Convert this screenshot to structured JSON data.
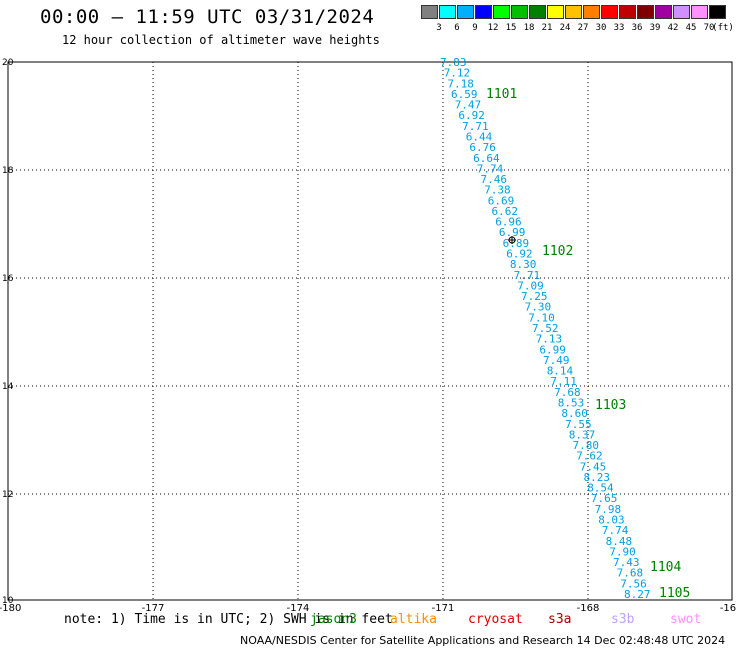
{
  "header": {
    "title": "00:00 – 11:59 UTC 03/31/2024",
    "subtitle": "12 hour collection of altimeter wave heights"
  },
  "color_scale": {
    "labels": [
      "3",
      "6",
      "9",
      "12",
      "15",
      "18",
      "21",
      "24",
      "27",
      "30",
      "33",
      "36",
      "39",
      "42",
      "45",
      "70"
    ],
    "unit": "(ft)",
    "colors": [
      "#808080",
      "#00ffff",
      "#00b0ff",
      "#0000ff",
      "#00ff00",
      "#00c000",
      "#008000",
      "#ffff00",
      "#ffc000",
      "#ff8000",
      "#ff0000",
      "#c00000",
      "#800000",
      "#a000a0",
      "#d090ff",
      "#ff90ff",
      "#000000"
    ]
  },
  "map": {
    "x_ticks": [
      "-180",
      "-177",
      "-174",
      "-171",
      "-168",
      "-16"
    ],
    "y_ticks": [
      "20",
      "18",
      "16",
      "14",
      "12",
      "10"
    ],
    "heights": [
      "7.83",
      "7.12",
      "7.18",
      "6.59",
      "7.47",
      "6.92",
      "7.71",
      "6.44",
      "6.76",
      "6.64",
      "7.74",
      "7.46",
      "7.38",
      "6.69",
      "6.62",
      "6.96",
      "6.99",
      "6.89",
      "6.92",
      "8.30",
      "7.71",
      "7.09",
      "7.25",
      "7.30",
      "7.10",
      "7.52",
      "7.13",
      "6.99",
      "7.49",
      "8.14",
      "7.11",
      "7.68",
      "8.53",
      "8.60",
      "7.55",
      "8.37",
      "7.80",
      "7.62",
      "7.45",
      "8.23",
      "8.54",
      "7.65",
      "7.98",
      "8.03",
      "7.74",
      "8.48",
      "7.90",
      "7.43",
      "7.68",
      "7.56",
      "8.27"
    ],
    "time_labels": [
      "1101",
      "1102",
      "1103",
      "1104",
      "1105"
    ],
    "height_color": "#00a0e0",
    "time_color": "#008000"
  },
  "footer": {
    "note": "note: 1) Time is in UTC; 2) SWH is in feet",
    "satellites": [
      {
        "name": "jason3",
        "color": "#008000"
      },
      {
        "name": "altika",
        "color": "#ff8c00"
      },
      {
        "name": "cryosat",
        "color": "#e00000"
      },
      {
        "name": "s3a",
        "color": "#a00000"
      },
      {
        "name": "s3b",
        "color": "#c0a0ff"
      },
      {
        "name": "swot",
        "color": "#ff90ff"
      }
    ],
    "credit": "NOAA/NESDIS Center for Satellite Applications and Research   14 Dec 02:48:48 UTC 2024"
  }
}
